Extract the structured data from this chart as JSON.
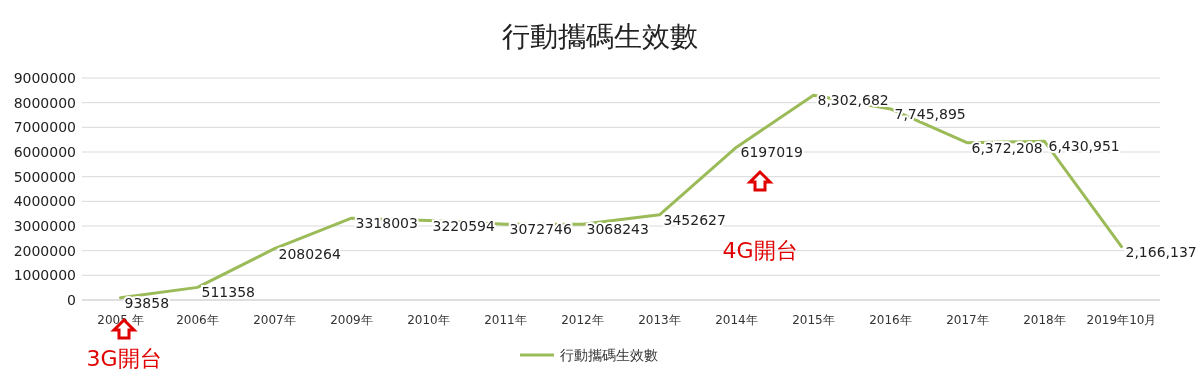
{
  "chart_data": {
    "type": "line",
    "title": "行動攜碼生效數",
    "categories": [
      "2005 年",
      "2006年",
      "2007年",
      "2009年",
      "2010年",
      "2011年",
      "2012年",
      "2013年",
      "2014年",
      "2015年",
      "2016年",
      "2017年",
      "2018年",
      "2019年10月"
    ],
    "series": [
      {
        "name": "行動攜碼生效數",
        "color": "#9bbb59",
        "values": [
          93858,
          511358,
          2080264,
          3318003,
          3220594,
          3072746,
          3068243,
          3452627,
          6197019,
          8302682,
          7745895,
          6372208,
          6430951,
          2166137
        ],
        "value_labels": [
          "93858",
          "511358",
          "2080264",
          "3318003",
          "3220594",
          "3072746",
          "3068243",
          "3452627",
          "6197019",
          "8,302,682",
          "7,745,895",
          "6,372,208",
          "6,430,951",
          "2,166,137"
        ]
      }
    ],
    "ylim": [
      0,
      9000000
    ],
    "yticks": [
      0,
      1000000,
      2000000,
      3000000,
      4000000,
      5000000,
      6000000,
      7000000,
      8000000,
      9000000
    ],
    "grid": "y",
    "legend": "bottom",
    "marker": "none",
    "line_style": "solid",
    "annotations": [
      "3G開台",
      "4G開台"
    ]
  }
}
